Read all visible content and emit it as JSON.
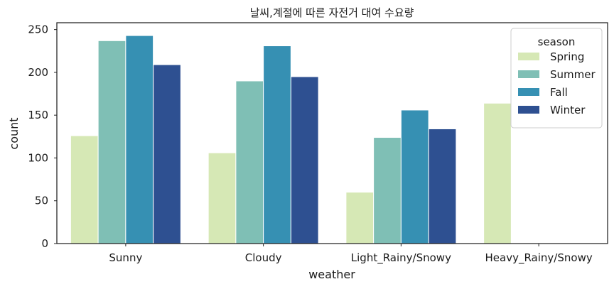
{
  "chart_data": {
    "type": "bar",
    "title": "날씨,계절에 따른 자전거 대여 수요량",
    "xlabel": "weather",
    "ylabel": "count",
    "categories": [
      "Sunny",
      "Cloudy",
      "Light_Rainy/Snowy",
      "Heavy_Rainy/Snowy"
    ],
    "series": [
      {
        "name": "Spring",
        "color": "#d6e8b5",
        "values": [
          126,
          106,
          60,
          164
        ]
      },
      {
        "name": "Summer",
        "color": "#7fbfb5",
        "values": [
          237,
          190,
          124,
          null
        ]
      },
      {
        "name": "Fall",
        "color": "#3690b3",
        "values": [
          243,
          231,
          156,
          null
        ]
      },
      {
        "name": "Winter",
        "color": "#2e5091",
        "values": [
          209,
          195,
          134,
          null
        ]
      }
    ],
    "ylim": [
      0,
      258
    ],
    "yticks": [
      0,
      50,
      100,
      150,
      200,
      250
    ],
    "legend": {
      "title": "season",
      "position": "top-right"
    },
    "grid": false
  }
}
